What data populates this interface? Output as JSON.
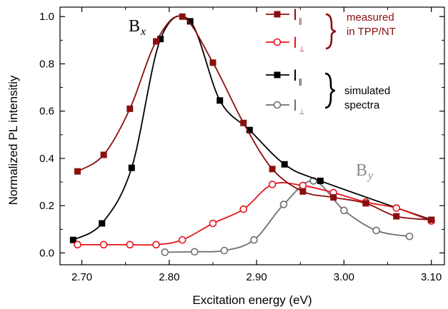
{
  "chart_data": {
    "type": "line",
    "xlabel": "Excitation energy (eV)",
    "ylabel": "Normalized PL intensitiy",
    "xlim": [
      2.675,
      3.115
    ],
    "ylim": [
      -0.05,
      1.04
    ],
    "xticks": [
      "2.70",
      "2.80",
      "2.90",
      "3.00",
      "3.10"
    ],
    "xtick_values": [
      2.7,
      2.8,
      2.9,
      3.0,
      3.1
    ],
    "yticks": [
      "0.0",
      "0.2",
      "0.4",
      "0.6",
      "0.8",
      "1.0"
    ],
    "ytick_values": [
      0.0,
      0.2,
      0.4,
      0.6,
      0.8,
      1.0
    ],
    "grid": false,
    "legend_position": "top-right",
    "series": [
      {
        "name": "I∥",
        "group": "measured in TPP/NT",
        "color": "#8b0f0f",
        "marker": "filled-square",
        "x": [
          2.695,
          2.725,
          2.755,
          2.785,
          2.815,
          2.85,
          2.885,
          2.918,
          2.953,
          2.988,
          3.025,
          3.06,
          3.1
        ],
        "y": [
          0.345,
          0.415,
          0.61,
          0.895,
          1.0,
          0.805,
          0.55,
          0.355,
          0.26,
          0.235,
          0.21,
          0.155,
          0.14
        ]
      },
      {
        "name": "I⊥",
        "group": "measured in TPP/NT",
        "color": "#e8141b",
        "marker": "open-circle",
        "x": [
          2.695,
          2.725,
          2.755,
          2.785,
          2.815,
          2.85,
          2.885,
          2.918,
          2.953,
          2.988,
          3.025,
          3.06,
          3.1
        ],
        "y": [
          0.035,
          0.035,
          0.035,
          0.035,
          0.055,
          0.125,
          0.185,
          0.29,
          0.285,
          0.255,
          0.215,
          0.19,
          0.135
        ]
      },
      {
        "name": "I∥",
        "group": "simulated spectra",
        "color": "#000000",
        "marker": "filled-square",
        "x": [
          2.69,
          2.723,
          2.757,
          2.79,
          2.824,
          2.858,
          2.892,
          2.932,
          2.973,
          3.1
        ],
        "y": [
          0.055,
          0.125,
          0.36,
          0.905,
          0.98,
          0.645,
          0.52,
          0.375,
          0.305,
          0.14
        ]
      },
      {
        "name": "I⊥",
        "group": "simulated spectra",
        "color": "#6e6e6e",
        "marker": "open-circle",
        "x": [
          2.795,
          2.829,
          2.863,
          2.897,
          2.931,
          2.965,
          3.0,
          3.037,
          3.075
        ],
        "y": [
          0.003,
          0.005,
          0.01,
          0.055,
          0.205,
          0.305,
          0.18,
          0.095,
          0.07
        ]
      }
    ],
    "legend": {
      "measured_label": "measured\nin TPP/NT",
      "simulated_label": "simulated\nspectra",
      "measured_color": "#8b0f0f",
      "simulated_color": "#000000"
    },
    "annotations": [
      {
        "main": "B",
        "sub": "x",
        "color": "#000000",
        "near_series": "measured I∥ peak"
      },
      {
        "main": "B",
        "sub": "y",
        "color": "#8c8c8c",
        "near_series": "simulated I⊥ peak"
      }
    ]
  }
}
